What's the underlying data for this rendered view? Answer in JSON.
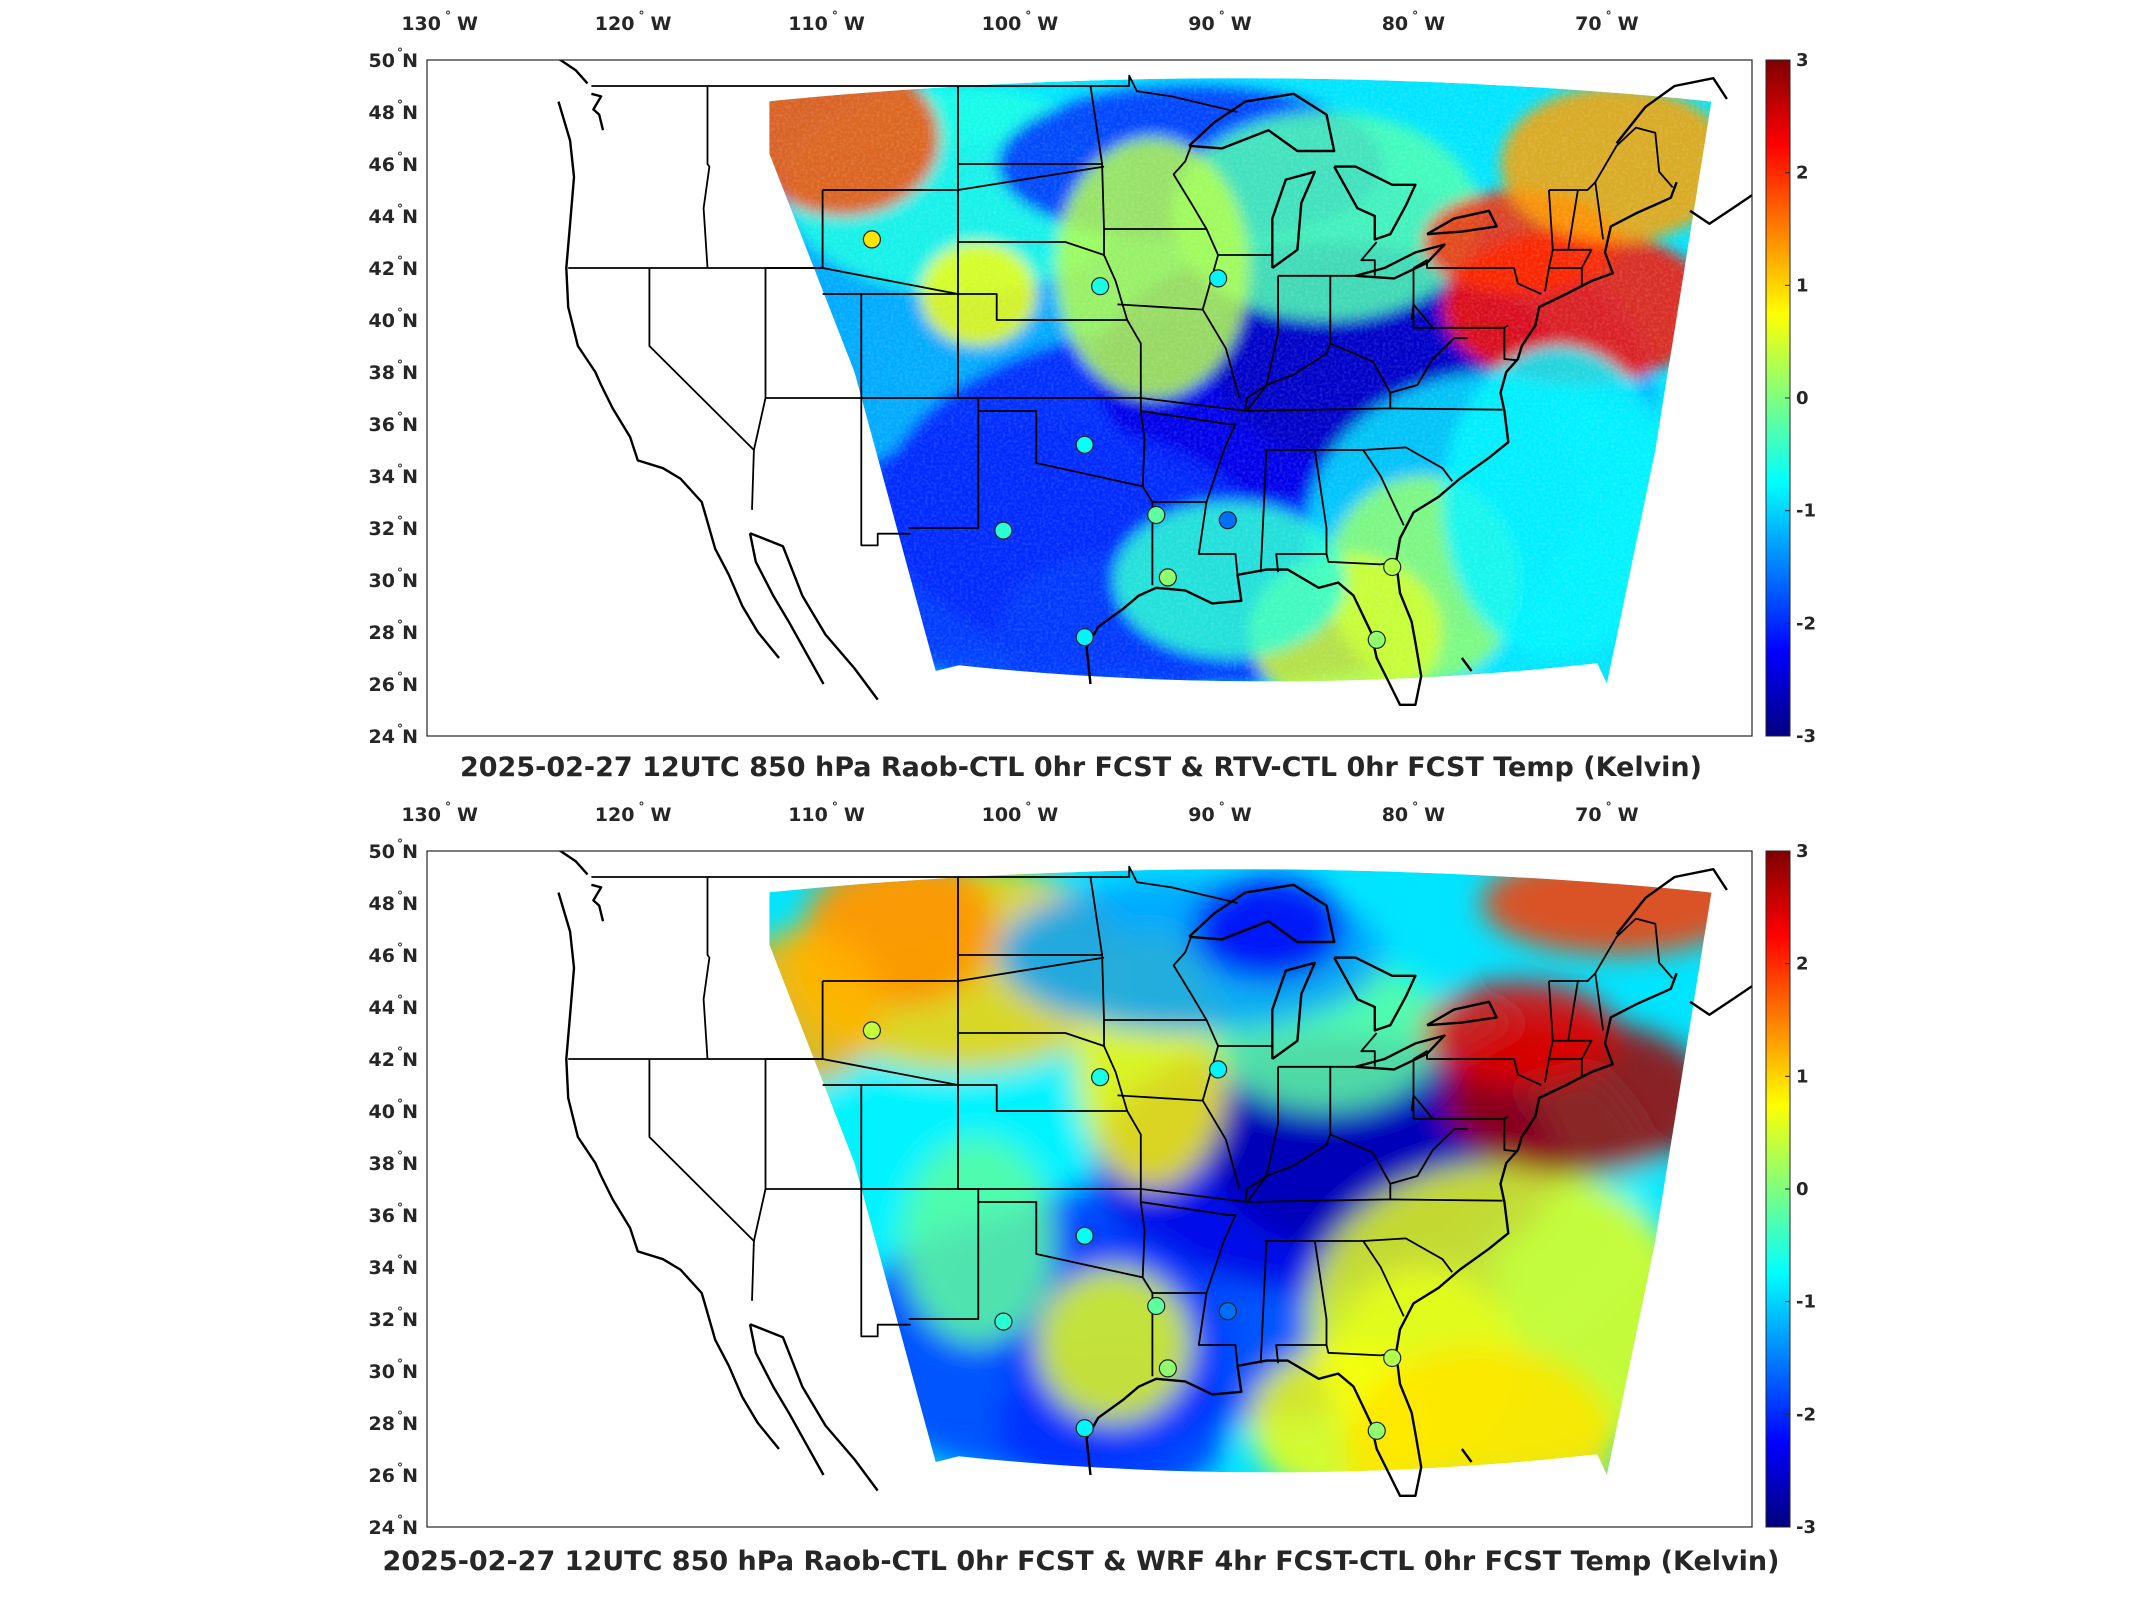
{
  "colors": {
    "colormap": [
      "#00007f",
      "#0000ff",
      "#007fff",
      "#00ffff",
      "#7fff7f",
      "#ffff00",
      "#ff7f00",
      "#ff0000",
      "#7f0000"
    ]
  },
  "panels": [
    {
      "title": "2025-02-27 12UTC 850 hPa Raob-CTL 0hr FCST & RTV-CTL 0hr FCST Temp (Kelvin)",
      "field_style": "rtv",
      "lon_ticks": [
        {
          "num": "130",
          "dir": "W",
          "lon": -130
        },
        {
          "num": "120",
          "dir": "W",
          "lon": -120
        },
        {
          "num": "110",
          "dir": "W",
          "lon": -110
        },
        {
          "num": "100",
          "dir": "W",
          "lon": -100
        },
        {
          "num": "90",
          "dir": "W",
          "lon": -90
        },
        {
          "num": "80",
          "dir": "W",
          "lon": -80
        },
        {
          "num": "70",
          "dir": "W",
          "lon": -70
        }
      ],
      "lat_ticks": [
        {
          "num": "50",
          "dir": "N",
          "lat": 50
        },
        {
          "num": "48",
          "dir": "N",
          "lat": 48
        },
        {
          "num": "46",
          "dir": "N",
          "lat": 46
        },
        {
          "num": "44",
          "dir": "N",
          "lat": 44
        },
        {
          "num": "42",
          "dir": "N",
          "lat": 42
        },
        {
          "num": "40",
          "dir": "N",
          "lat": 40
        },
        {
          "num": "38",
          "dir": "N",
          "lat": 38
        },
        {
          "num": "36",
          "dir": "N",
          "lat": 36
        },
        {
          "num": "34",
          "dir": "N",
          "lat": 34
        },
        {
          "num": "32",
          "dir": "N",
          "lat": 32
        },
        {
          "num": "30",
          "dir": "N",
          "lat": 30
        },
        {
          "num": "28",
          "dir": "N",
          "lat": 28
        },
        {
          "num": "26",
          "dir": "N",
          "lat": 26
        },
        {
          "num": "24",
          "dir": "N",
          "lat": 24
        }
      ],
      "colorbar": {
        "min": -3,
        "max": 3,
        "ticks": [
          "3",
          "2",
          "1",
          "0",
          "-1",
          "-2",
          "-3"
        ]
      },
      "stations": [
        {
          "lon": -108.5,
          "lat": 43.1,
          "value": 0.9
        },
        {
          "lon": -96.7,
          "lat": 41.3,
          "value": -0.6
        },
        {
          "lon": -90.6,
          "lat": 41.6,
          "value": -0.8
        },
        {
          "lon": -97.5,
          "lat": 35.2,
          "value": -0.7
        },
        {
          "lon": -101.7,
          "lat": 31.9,
          "value": -0.5
        },
        {
          "lon": -93.8,
          "lat": 32.5,
          "value": -0.2
        },
        {
          "lon": -90.1,
          "lat": 32.3,
          "value": -1.6
        },
        {
          "lon": -93.2,
          "lat": 30.1,
          "value": 0.1
        },
        {
          "lon": -97.5,
          "lat": 27.8,
          "value": -0.8
        },
        {
          "lon": -81.6,
          "lat": 30.5,
          "value": 0.3
        },
        {
          "lon": -82.4,
          "lat": 27.7,
          "value": 0.1
        }
      ]
    },
    {
      "title": "2025-02-27 12UTC 850 hPa Raob-CTL 0hr FCST & WRF 4hr FCST-CTL 0hr FCST Temp (Kelvin)",
      "field_style": "wrf",
      "lon_ticks": [
        {
          "num": "130",
          "dir": "W",
          "lon": -130
        },
        {
          "num": "120",
          "dir": "W",
          "lon": -120
        },
        {
          "num": "110",
          "dir": "W",
          "lon": -110
        },
        {
          "num": "100",
          "dir": "W",
          "lon": -100
        },
        {
          "num": "90",
          "dir": "W",
          "lon": -90
        },
        {
          "num": "80",
          "dir": "W",
          "lon": -80
        },
        {
          "num": "70",
          "dir": "W",
          "lon": -70
        }
      ],
      "lat_ticks": [
        {
          "num": "50",
          "dir": "N",
          "lat": 50
        },
        {
          "num": "48",
          "dir": "N",
          "lat": 48
        },
        {
          "num": "46",
          "dir": "N",
          "lat": 46
        },
        {
          "num": "44",
          "dir": "N",
          "lat": 44
        },
        {
          "num": "42",
          "dir": "N",
          "lat": 42
        },
        {
          "num": "40",
          "dir": "N",
          "lat": 40
        },
        {
          "num": "38",
          "dir": "N",
          "lat": 38
        },
        {
          "num": "36",
          "dir": "N",
          "lat": 36
        },
        {
          "num": "34",
          "dir": "N",
          "lat": 34
        },
        {
          "num": "32",
          "dir": "N",
          "lat": 32
        },
        {
          "num": "30",
          "dir": "N",
          "lat": 30
        },
        {
          "num": "28",
          "dir": "N",
          "lat": 28
        },
        {
          "num": "26",
          "dir": "N",
          "lat": 26
        },
        {
          "num": "24",
          "dir": "N",
          "lat": 24
        }
      ],
      "colorbar": {
        "min": -3,
        "max": 3,
        "ticks": [
          "3",
          "2",
          "1",
          "0",
          "-1",
          "-2",
          "-3"
        ]
      },
      "stations": [
        {
          "lon": -108.5,
          "lat": 43.1,
          "value": 0.4
        },
        {
          "lon": -96.7,
          "lat": 41.3,
          "value": -0.6
        },
        {
          "lon": -90.6,
          "lat": 41.6,
          "value": -0.8
        },
        {
          "lon": -97.5,
          "lat": 35.2,
          "value": -0.7
        },
        {
          "lon": -101.7,
          "lat": 31.9,
          "value": -0.5
        },
        {
          "lon": -93.8,
          "lat": 32.5,
          "value": -0.2
        },
        {
          "lon": -90.1,
          "lat": 32.3,
          "value": -1.6
        },
        {
          "lon": -93.2,
          "lat": 30.1,
          "value": 0.1
        },
        {
          "lon": -97.5,
          "lat": 27.8,
          "value": -0.8
        },
        {
          "lon": -81.6,
          "lat": 30.5,
          "value": 0.3
        },
        {
          "lon": -82.4,
          "lat": 27.7,
          "value": 0.1
        }
      ]
    }
  ]
}
